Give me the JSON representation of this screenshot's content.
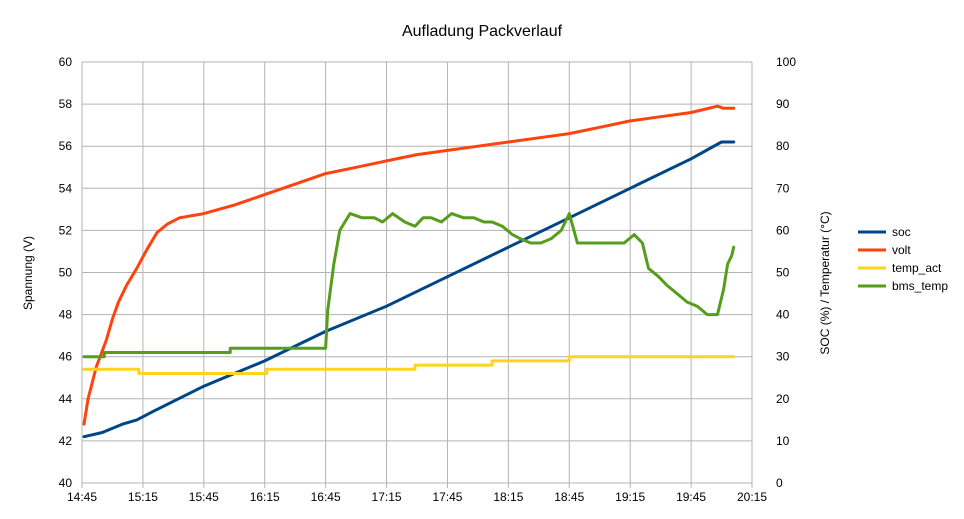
{
  "chart_data": {
    "type": "line",
    "title": "Aufladung Packverlauf",
    "xlabel": "",
    "ylabel": "Spannung (V)",
    "y2label": "SOC (%) / Temperatur (°C)",
    "x_ticks": [
      "14:45",
      "15:15",
      "15:45",
      "16:15",
      "16:45",
      "17:15",
      "17:45",
      "18:15",
      "18:45",
      "19:15",
      "19:45",
      "20:15"
    ],
    "xlim": [
      "14:45",
      "20:15"
    ],
    "ylim": [
      40,
      60
    ],
    "y_ticks": [
      "40",
      "42",
      "44",
      "46",
      "48",
      "50",
      "52",
      "54",
      "56",
      "58",
      "60"
    ],
    "y2lim": [
      0,
      100
    ],
    "y2_ticks": [
      "0",
      "10",
      "20",
      "30",
      "40",
      "50",
      "60",
      "70",
      "80",
      "90",
      "100"
    ],
    "grid": true,
    "legend_position": "right",
    "series": [
      {
        "name": "soc",
        "axis": "right",
        "color": "#004586",
        "x": [
          "14:46",
          "14:55",
          "15:05",
          "15:12",
          "15:20",
          "15:45",
          "16:15",
          "16:45",
          "17:15",
          "17:45",
          "18:15",
          "18:45",
          "19:15",
          "19:45",
          "20:00",
          "20:06"
        ],
        "values": [
          11,
          12,
          14,
          15,
          17,
          23,
          29,
          36,
          42,
          49,
          56,
          63,
          70,
          77,
          81,
          81
        ]
      },
      {
        "name": "volt",
        "axis": "left",
        "color": "#ff420e",
        "x": [
          "14:46",
          "14:48",
          "14:52",
          "14:57",
          "15:00",
          "15:03",
          "15:07",
          "15:12",
          "15:17",
          "15:22",
          "15:27",
          "15:33",
          "15:45",
          "16:00",
          "16:15",
          "16:30",
          "16:45",
          "17:00",
          "17:15",
          "17:30",
          "17:45",
          "18:00",
          "18:15",
          "18:30",
          "18:45",
          "19:00",
          "19:15",
          "19:30",
          "19:45",
          "19:58",
          "20:01",
          "20:06"
        ],
        "values": [
          42.8,
          44.0,
          45.5,
          46.8,
          47.8,
          48.6,
          49.4,
          50.2,
          51.1,
          51.9,
          52.3,
          52.6,
          52.8,
          53.2,
          53.7,
          54.2,
          54.7,
          55.0,
          55.3,
          55.6,
          55.8,
          56.0,
          56.2,
          56.4,
          56.6,
          56.9,
          57.2,
          57.4,
          57.6,
          57.9,
          57.8,
          57.8
        ]
      },
      {
        "name": "temp_act",
        "axis": "right",
        "color": "#ffd320",
        "x": [
          "14:46",
          "15:13",
          "15:13",
          "16:16",
          "16:16",
          "17:29",
          "17:29",
          "18:07",
          "18:07",
          "18:45",
          "18:45",
          "20:06"
        ],
        "values": [
          27,
          27,
          26,
          26,
          27,
          27,
          28,
          28,
          29,
          29,
          30,
          30
        ]
      },
      {
        "name": "bms_temp",
        "axis": "right",
        "color": "#579d1c",
        "x": [
          "14:46",
          "14:56",
          "14:56",
          "15:58",
          "15:58",
          "16:45",
          "16:46",
          "16:49",
          "16:52",
          "16:57",
          "17:03",
          "17:09",
          "17:13",
          "17:18",
          "17:24",
          "17:29",
          "17:33",
          "17:37",
          "17:42",
          "17:47",
          "17:53",
          "17:58",
          "18:03",
          "18:07",
          "18:12",
          "18:17",
          "18:21",
          "18:26",
          "18:31",
          "18:36",
          "18:41",
          "18:45",
          "18:49",
          "18:53",
          "18:57",
          "19:02",
          "19:07",
          "19:12",
          "19:17",
          "19:21",
          "19:24",
          "19:29",
          "19:33",
          "19:38",
          "19:43",
          "19:48",
          "19:53",
          "19:56",
          "19:58",
          "20:01",
          "20:03",
          "20:05",
          "20:06"
        ],
        "values": [
          30,
          30,
          31,
          31,
          32,
          32,
          41,
          52,
          60,
          64,
          63,
          63,
          62,
          64,
          62,
          61,
          63,
          63,
          62,
          64,
          63,
          63,
          62,
          62,
          61,
          59,
          58,
          57,
          57,
          58,
          60,
          64,
          57,
          57,
          57,
          57,
          57,
          57,
          59,
          57,
          51,
          49,
          47,
          45,
          43,
          42,
          40,
          40,
          40,
          46,
          52,
          54,
          56
        ]
      }
    ]
  }
}
